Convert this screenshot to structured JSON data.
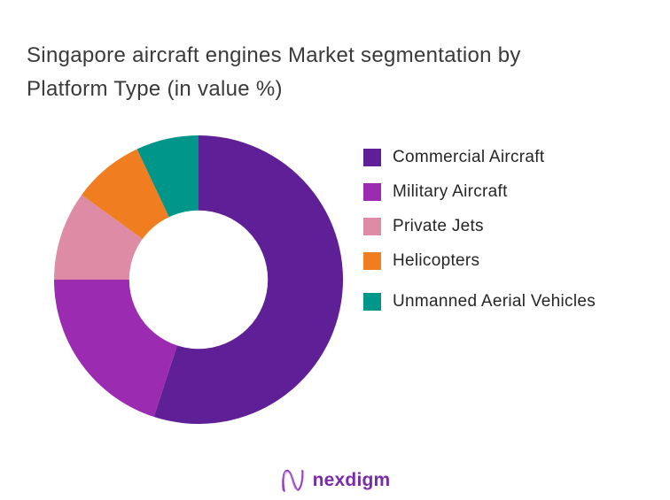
{
  "title": {
    "text": "Singapore aircraft engines Market segmentation by Platform Type (in value %)"
  },
  "chart_data": {
    "type": "pie",
    "subtype": "donut",
    "title": "Singapore aircraft engines Market segmentation by Platform Type (in value %)",
    "unit": "%",
    "categories": [
      "Commercial Aircraft",
      "Military Aircraft",
      "Private Jets",
      "Helicopters",
      "Unmanned Aerial Vehicles"
    ],
    "values": [
      55,
      20,
      10,
      8,
      7
    ],
    "colors": [
      "#5f1f97",
      "#9b2bb1",
      "#de8ba6",
      "#f07e20",
      "#00968a"
    ],
    "start_angle_deg": 0,
    "direction": "clockwise",
    "inner_radius_ratio": 0.48,
    "legend_position": "right",
    "data_labels": "none"
  },
  "footer": {
    "brand": "nexdigm",
    "brand_color": "#7a2bac"
  }
}
